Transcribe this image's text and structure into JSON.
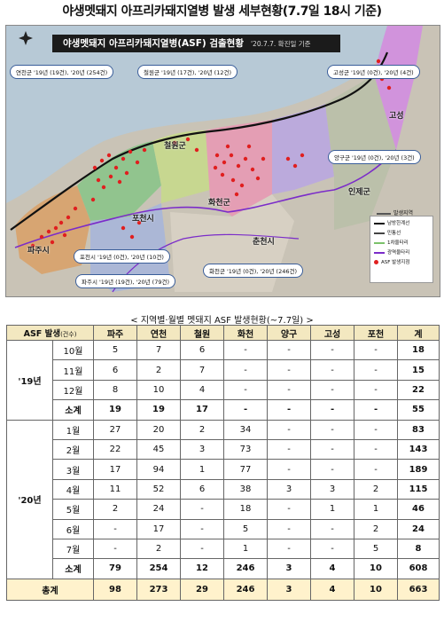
{
  "title": "야생멧돼지 아프리카돼지열병 발생 세부현황(7.7일 18시 기준)",
  "map": {
    "banner": "야생멧돼지 아프리카돼지열병(ASF) 검출현황",
    "banner_date": "'20.7.7. 확진일 기준",
    "north_label": "N",
    "callouts": [
      {
        "key": "yeoncheon",
        "text": "연천군 '19년 (19건), '20년 (254건)"
      },
      {
        "key": "cheorwon",
        "text": "철원군 '19년 (17건), '20년 (12건)"
      },
      {
        "key": "goseong",
        "text": "고성군 '19년 (0건), '20년 (4건)"
      },
      {
        "key": "yanggu",
        "text": "양구군 '19년 (0건), '20년 (3건)"
      },
      {
        "key": "pocheon",
        "text": "포천시 '19년 (0건), '20년 (10건)"
      },
      {
        "key": "paju",
        "text": "파주시 '19년 (19건), '20년 (79건)"
      },
      {
        "key": "hwacheon",
        "text": "화천군 '19년 (0건), '20년 (246건)"
      }
    ],
    "places": {
      "cheorwon": "철원군",
      "hwacheon": "화천군",
      "inje": "인제군",
      "pocheon": "포천시",
      "chuncheon": "춘천시",
      "paju": "파주시",
      "goseong": "고성"
    },
    "legend": {
      "infected_area": "발생지역",
      "items": [
        "남방한계선",
        "민통선",
        "1차울타리",
        "광역울타리",
        "ASF 발생지점"
      ]
    },
    "colors": {
      "sea": "#b7c9d6",
      "land": "#c9c3b6",
      "paju": "#d9a066",
      "yeoncheon": "#8bc48a",
      "cheorwon": "#c7d98c",
      "pocheon": "#a7b6d9",
      "hwacheon": "#e79ab4",
      "yanggu": "#b9a7e0",
      "inje": "#b9c0a8",
      "goseong": "#d28ee0",
      "dot": "#e01f1f"
    }
  },
  "table_title": "< 지역별·월별 멧돼지 ASF 발생현황(~7.7일) >",
  "table": {
    "corner": "ASF 발생",
    "corner_unit": "(건수)",
    "columns": [
      "파주",
      "연천",
      "철원",
      "화천",
      "양구",
      "고성",
      "포천",
      "계"
    ],
    "years": [
      {
        "label": "'19년",
        "rows": [
          {
            "month": "10월",
            "values": [
              "5",
              "7",
              "6",
              "-",
              "-",
              "-",
              "-",
              "18"
            ]
          },
          {
            "month": "11월",
            "values": [
              "6",
              "2",
              "7",
              "-",
              "-",
              "-",
              "-",
              "15"
            ]
          },
          {
            "month": "12월",
            "values": [
              "8",
              "10",
              "4",
              "-",
              "-",
              "-",
              "-",
              "22"
            ]
          },
          {
            "month": "소계",
            "values": [
              "19",
              "19",
              "17",
              "-",
              "-",
              "-",
              "-",
              "55"
            ]
          }
        ]
      },
      {
        "label": "'20년",
        "rows": [
          {
            "month": "1월",
            "values": [
              "27",
              "20",
              "2",
              "34",
              "-",
              "-",
              "-",
              "83"
            ]
          },
          {
            "month": "2월",
            "values": [
              "22",
              "45",
              "3",
              "73",
              "-",
              "-",
              "-",
              "143"
            ]
          },
          {
            "month": "3월",
            "values": [
              "17",
              "94",
              "1",
              "77",
              "-",
              "-",
              "-",
              "189"
            ]
          },
          {
            "month": "4월",
            "values": [
              "11",
              "52",
              "6",
              "38",
              "3",
              "3",
              "2",
              "115"
            ]
          },
          {
            "month": "5월",
            "values": [
              "2",
              "24",
              "-",
              "18",
              "-",
              "1",
              "1",
              "46"
            ]
          },
          {
            "month": "6월",
            "values": [
              "-",
              "17",
              "-",
              "5",
              "-",
              "-",
              "2",
              "24"
            ]
          },
          {
            "month": "7월",
            "values": [
              "-",
              "2",
              "-",
              "1",
              "-",
              "-",
              "5",
              "8"
            ]
          },
          {
            "month": "소계",
            "values": [
              "79",
              "254",
              "12",
              "246",
              "3",
              "4",
              "10",
              "608"
            ]
          }
        ]
      }
    ],
    "total": {
      "label": "총계",
      "values": [
        "98",
        "273",
        "29",
        "246",
        "3",
        "4",
        "10",
        "663"
      ]
    }
  }
}
